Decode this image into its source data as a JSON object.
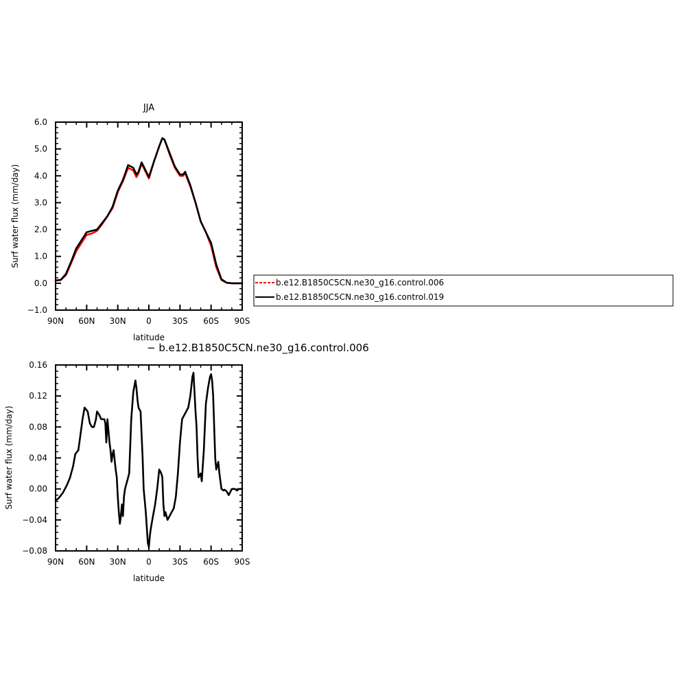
{
  "chart_data": [
    {
      "type": "line",
      "title": "JJA",
      "xlabel": "latitude",
      "ylabel": "Surf water flux (mm/day)",
      "xlim": [
        90,
        -90
      ],
      "ylim": [
        -1.0,
        6.0
      ],
      "x_ticks": [
        {
          "value": 90,
          "label": "90N"
        },
        {
          "value": 60,
          "label": "60N"
        },
        {
          "value": 30,
          "label": "30N"
        },
        {
          "value": 0,
          "label": "0"
        },
        {
          "value": -30,
          "label": "30S"
        },
        {
          "value": -60,
          "label": "60S"
        },
        {
          "value": -90,
          "label": "90S"
        }
      ],
      "y_ticks": [
        {
          "value": -1.0,
          "label": "−1.0"
        },
        {
          "value": 0.0,
          "label": "0.0"
        },
        {
          "value": 1.0,
          "label": "1.0"
        },
        {
          "value": 2.0,
          "label": "2.0"
        },
        {
          "value": 3.0,
          "label": "3.0"
        },
        {
          "value": 4.0,
          "label": "4.0"
        },
        {
          "value": 5.0,
          "label": "5.0"
        },
        {
          "value": 6.0,
          "label": "6.0"
        }
      ],
      "legend": {
        "placement": "right"
      },
      "series": [
        {
          "name": "b.e12.B1850C5CN.ne30_g16.control.006",
          "color": "#ff0000",
          "dashed": true,
          "x": [
            90,
            85,
            80,
            75,
            70,
            65,
            60,
            55,
            50,
            45,
            40,
            35,
            30,
            25,
            20,
            15,
            12,
            10,
            7,
            5,
            0,
            -5,
            -10,
            -13,
            -15,
            -20,
            -25,
            -30,
            -33,
            -35,
            -40,
            -45,
            -50,
            -55,
            -60,
            -65,
            -70,
            -75,
            -80,
            -85,
            -90
          ],
          "y": [
            0.1,
            0.12,
            0.3,
            0.75,
            1.2,
            1.5,
            1.8,
            1.85,
            1.95,
            2.2,
            2.5,
            2.8,
            3.4,
            3.8,
            4.3,
            4.2,
            3.95,
            4.1,
            4.45,
            4.3,
            3.9,
            4.55,
            5.1,
            5.4,
            5.35,
            4.8,
            4.3,
            4.0,
            4.0,
            4.1,
            3.6,
            3.0,
            2.3,
            1.9,
            1.4,
            0.6,
            0.12,
            0.02,
            0.0,
            0.0,
            0.0
          ]
        },
        {
          "name": "b.e12.B1850C5CN.ne30_g16.control.019",
          "color": "#000000",
          "dashed": false,
          "x": [
            90,
            85,
            80,
            75,
            70,
            65,
            60,
            55,
            50,
            45,
            40,
            35,
            30,
            25,
            20,
            15,
            12,
            10,
            7,
            5,
            0,
            -5,
            -10,
            -13,
            -15,
            -20,
            -25,
            -30,
            -33,
            -35,
            -40,
            -45,
            -50,
            -55,
            -60,
            -65,
            -70,
            -75,
            -80,
            -85,
            -90
          ],
          "y": [
            0.1,
            0.13,
            0.35,
            0.8,
            1.3,
            1.6,
            1.9,
            1.95,
            2.0,
            2.25,
            2.5,
            2.85,
            3.45,
            3.85,
            4.4,
            4.3,
            4.05,
            4.15,
            4.5,
            4.35,
            3.95,
            4.55,
            5.1,
            5.4,
            5.35,
            4.85,
            4.35,
            4.05,
            4.05,
            4.15,
            3.65,
            3.0,
            2.3,
            1.9,
            1.5,
            0.7,
            0.15,
            0.02,
            0.0,
            0.0,
            0.0
          ]
        }
      ]
    },
    {
      "type": "line",
      "title": "− b.e12.B1850C5CN.ne30_g16.control.006",
      "xlabel": "latitude",
      "ylabel": "Surf water flux (mm/day)",
      "xlim": [
        90,
        -90
      ],
      "ylim": [
        -0.08,
        0.16
      ],
      "x_ticks": [
        {
          "value": 90,
          "label": "90N"
        },
        {
          "value": 60,
          "label": "60N"
        },
        {
          "value": 30,
          "label": "30N"
        },
        {
          "value": 0,
          "label": "0"
        },
        {
          "value": -30,
          "label": "30S"
        },
        {
          "value": -60,
          "label": "60S"
        },
        {
          "value": -90,
          "label": "90S"
        }
      ],
      "y_ticks": [
        {
          "value": -0.08,
          "label": "−0.08"
        },
        {
          "value": -0.04,
          "label": "−0.04"
        },
        {
          "value": 0.0,
          "label": "0.00"
        },
        {
          "value": 0.04,
          "label": "0.04"
        },
        {
          "value": 0.08,
          "label": "0.08"
        },
        {
          "value": 0.12,
          "label": "0.12"
        },
        {
          "value": 0.16,
          "label": "0.16"
        }
      ],
      "series": [
        {
          "color": "#000000",
          "dashed": false,
          "x": [
            90,
            87,
            83,
            79,
            76,
            73,
            71,
            68,
            66,
            64,
            62,
            59,
            57,
            55,
            53,
            51,
            50,
            48,
            46,
            44,
            43,
            42,
            41,
            40,
            38,
            37,
            36,
            35,
            34,
            32,
            31,
            30,
            29,
            28,
            27,
            26,
            25,
            24,
            23,
            21,
            19,
            17,
            15,
            13,
            12,
            11,
            10,
            8,
            7,
            6,
            5,
            3,
            2,
            1,
            0,
            -1,
            -2,
            -4,
            -6,
            -8,
            -10,
            -12,
            -13,
            -14,
            -15,
            -16,
            -17,
            -18,
            -20,
            -22,
            -24,
            -26,
            -28,
            -30,
            -32,
            -34,
            -36,
            -38,
            -40,
            -42,
            -43,
            -44,
            -45,
            -46,
            -47,
            -48,
            -50,
            -51,
            -53,
            -54,
            -55,
            -57,
            -59,
            -60,
            -61,
            -62,
            -63,
            -64,
            -65,
            -66,
            -67,
            -68,
            -70,
            -72,
            -73,
            -75,
            -77,
            -80,
            -83,
            -85,
            -87,
            -90
          ],
          "y": [
            -0.015,
            -0.012,
            -0.005,
            0.005,
            0.015,
            0.03,
            0.045,
            0.05,
            0.07,
            0.09,
            0.105,
            0.1,
            0.085,
            0.08,
            0.08,
            0.09,
            0.1,
            0.096,
            0.09,
            0.09,
            0.09,
            0.085,
            0.06,
            0.09,
            0.06,
            0.05,
            0.035,
            0.045,
            0.05,
            0.025,
            0.015,
            -0.01,
            -0.03,
            -0.045,
            -0.035,
            -0.02,
            -0.035,
            -0.01,
            0.0,
            0.01,
            0.02,
            0.09,
            0.125,
            0.14,
            0.13,
            0.115,
            0.105,
            0.1,
            0.07,
            0.04,
            0.0,
            -0.03,
            -0.05,
            -0.07,
            -0.075,
            -0.06,
            -0.05,
            -0.035,
            -0.02,
            0.0,
            0.025,
            0.02,
            0.015,
            -0.02,
            -0.035,
            -0.03,
            -0.035,
            -0.04,
            -0.035,
            -0.03,
            -0.025,
            -0.01,
            0.02,
            0.06,
            0.09,
            0.095,
            0.1,
            0.105,
            0.12,
            0.145,
            0.15,
            0.125,
            0.1,
            0.08,
            0.04,
            0.015,
            0.02,
            0.01,
            0.05,
            0.08,
            0.11,
            0.13,
            0.145,
            0.148,
            0.14,
            0.12,
            0.08,
            0.04,
            0.025,
            0.03,
            0.035,
            0.02,
            0.0,
            -0.002,
            -0.001,
            -0.003,
            -0.008,
            0.0,
            0.0,
            -0.002,
            0.0,
            0.0
          ]
        }
      ]
    }
  ]
}
